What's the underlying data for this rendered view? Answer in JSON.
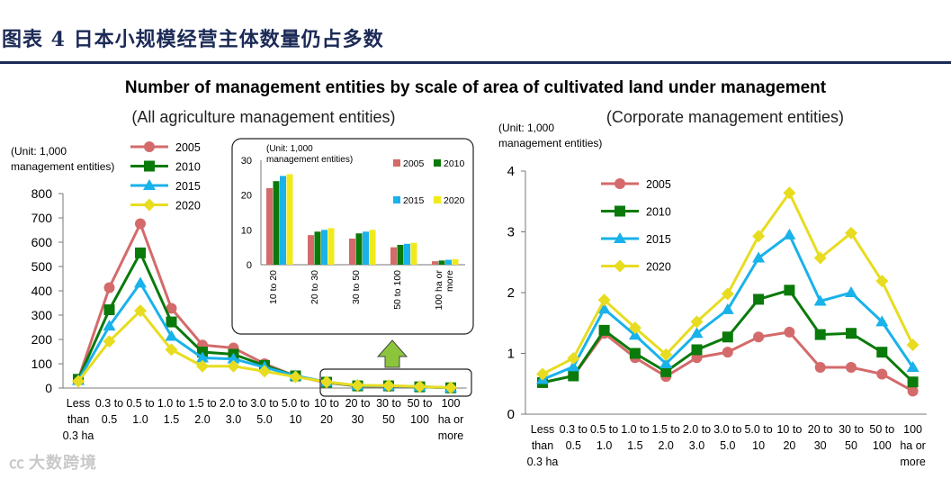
{
  "header": {
    "title": "图表 4  日本小规模经营主体数量仍占多数"
  },
  "main_title": "Number of management entities by scale of area of cultivated land under management",
  "watermark": "大数跨境",
  "colors": {
    "2005": "#d46a6a",
    "2010": "#0a7a0a",
    "2015": "#19b2ea",
    "2020": "#e8dc20",
    "bar_2020": "#f0ea1c",
    "arrow": "#8cc43c",
    "axis": "#777777"
  },
  "chart_data": [
    {
      "id": "all",
      "type": "line",
      "subtitle": "(All agriculture management entities)",
      "unit_label": [
        "(Unit: 1,000",
        "management entities)"
      ],
      "ylim": [
        0,
        800
      ],
      "yticks": [
        0,
        100,
        200,
        300,
        400,
        500,
        600,
        700,
        800
      ],
      "categories": [
        [
          "Less",
          "than",
          "0.3 ha"
        ],
        [
          "0.3 to",
          "0.5"
        ],
        [
          "0.5 to",
          "1.0"
        ],
        [
          "1.0 to",
          "1.5"
        ],
        [
          "1.5 to",
          "2.0"
        ],
        [
          "2.0 to",
          "3.0"
        ],
        [
          "3.0 to",
          "5.0"
        ],
        [
          "5.0 to",
          "10"
        ],
        [
          "10 to",
          "20"
        ],
        [
          "20 to",
          "30"
        ],
        [
          "30 to",
          "50"
        ],
        [
          "50 to",
          "100"
        ],
        [
          "100",
          "ha or",
          "more"
        ]
      ],
      "series": [
        {
          "name": "2005",
          "color": "#d46a6a",
          "marker": "circle",
          "values": [
            36,
            413,
            676,
            328,
            177,
            165,
            100,
            49,
            22,
            8,
            7,
            5,
            1
          ]
        },
        {
          "name": "2010",
          "color": "#0a7a0a",
          "marker": "square",
          "values": [
            36,
            322,
            556,
            272,
            148,
            139,
            93,
            50,
            24,
            9,
            9,
            5,
            1
          ]
        },
        {
          "name": "2015",
          "color": "#19b2ea",
          "marker": "triangle",
          "values": [
            31,
            255,
            432,
            213,
            124,
            120,
            86,
            50,
            25,
            10,
            9,
            6,
            1
          ]
        },
        {
          "name": "2020",
          "color": "#e8dc20",
          "marker": "diamond",
          "values": [
            28,
            192,
            318,
            158,
            90,
            90,
            69,
            46,
            25,
            11,
            10,
            6,
            2
          ]
        }
      ]
    },
    {
      "id": "inset",
      "type": "bar",
      "unit_label": [
        "(Unit: 1,000",
        "management entities)"
      ],
      "ylim": [
        0,
        30
      ],
      "yticks": [
        0,
        10,
        20,
        30
      ],
      "categories": [
        "10 to 20",
        "20 to 30",
        "30 to 50",
        "50 to 100",
        [
          "100 ha or",
          "more"
        ]
      ],
      "series": [
        {
          "name": "2005",
          "color": "#d46a6a",
          "values": [
            22,
            8.5,
            7.5,
            5,
            1
          ]
        },
        {
          "name": "2010",
          "color": "#0a7a0a",
          "values": [
            24,
            9.5,
            9,
            5.7,
            1.2
          ]
        },
        {
          "name": "2015",
          "color": "#19b2ea",
          "values": [
            25.5,
            10,
            9.5,
            6,
            1.4
          ]
        },
        {
          "name": "2020",
          "color": "#f0ea1c",
          "values": [
            26,
            10.5,
            10,
            6.3,
            1.6
          ]
        }
      ]
    },
    {
      "id": "corp",
      "type": "line",
      "subtitle": "(Corporate management entities)",
      "unit_label": [
        "(Unit: 1,000",
        "management entities)"
      ],
      "ylim": [
        0,
        4
      ],
      "yticks": [
        0,
        1,
        2,
        3,
        4
      ],
      "categories": [
        [
          "Less",
          "than",
          "0.3 ha"
        ],
        [
          "0.3 to",
          "0.5"
        ],
        [
          "0.5 to",
          "1.0"
        ],
        [
          "1.0 to",
          "1.5"
        ],
        [
          "1.5 to",
          "2.0"
        ],
        [
          "2.0 to",
          "3.0"
        ],
        [
          "3.0 to",
          "5.0"
        ],
        [
          "5.0 to",
          "10"
        ],
        [
          "10 to",
          "20"
        ],
        [
          "20 to",
          "30"
        ],
        [
          "30 to",
          "50"
        ],
        [
          "50 to",
          "100"
        ],
        [
          "100",
          "ha or",
          "more"
        ]
      ],
      "series": [
        {
          "name": "2005",
          "color": "#d46a6a",
          "marker": "circle",
          "values": [
            0.52,
            0.63,
            1.33,
            0.93,
            0.62,
            0.93,
            1.02,
            1.27,
            1.35,
            0.77,
            0.77,
            0.66,
            0.38
          ]
        },
        {
          "name": "2010",
          "color": "#0a7a0a",
          "marker": "square",
          "values": [
            0.52,
            0.63,
            1.38,
            1.0,
            0.7,
            1.06,
            1.27,
            1.89,
            2.04,
            1.31,
            1.33,
            1.02,
            0.53
          ]
        },
        {
          "name": "2015",
          "color": "#19b2ea",
          "marker": "triangle",
          "values": [
            0.57,
            0.78,
            1.73,
            1.3,
            0.83,
            1.33,
            1.72,
            2.57,
            2.95,
            1.86,
            2.0,
            1.52,
            0.77
          ]
        },
        {
          "name": "2020",
          "color": "#e8dc20",
          "marker": "diamond",
          "values": [
            0.66,
            0.92,
            1.88,
            1.42,
            0.98,
            1.52,
            1.98,
            2.93,
            3.64,
            2.57,
            2.98,
            2.19,
            1.14
          ]
        }
      ]
    }
  ]
}
